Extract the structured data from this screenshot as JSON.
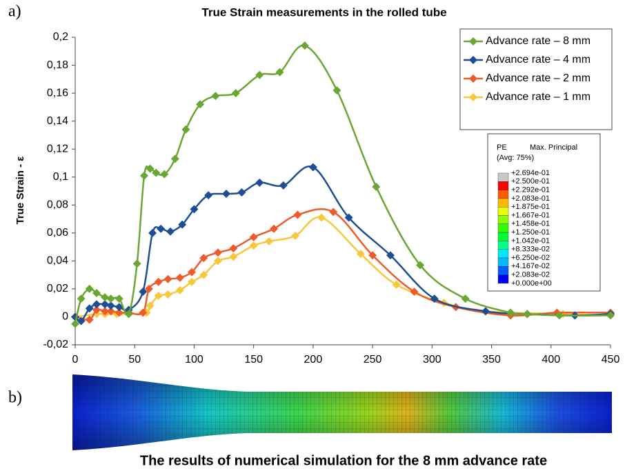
{
  "panel_labels": [
    "a)",
    "b)"
  ],
  "caption": "The results of numerical simulation for the 8 mm advance rate",
  "chart_data": {
    "type": "line",
    "title": "True Strain measurements in the rolled tube",
    "y_label": "True Strain - ε",
    "xlim": [
      0,
      450
    ],
    "xticks": [
      0,
      50,
      100,
      150,
      200,
      250,
      300,
      350,
      400,
      450
    ],
    "ylim": [
      -0.02,
      0.2
    ],
    "yticks": [
      {
        "value": -0.02,
        "label": "-0,02"
      },
      0,
      {
        "value": 0.02,
        "label": "0,02"
      },
      {
        "value": 0.04,
        "label": "0,04"
      },
      {
        "value": 0.06,
        "label": "0,06"
      },
      {
        "value": 0.08,
        "label": "0,08"
      },
      {
        "value": 0.1,
        "label": "0,1"
      },
      {
        "value": 0.12,
        "label": "0,12"
      },
      {
        "value": 0.14,
        "label": "0,14"
      },
      {
        "value": 0.16,
        "label": "0,16"
      },
      {
        "value": 0.18,
        "label": "0,18"
      },
      {
        "value": 0.2,
        "label": "0,2"
      }
    ],
    "grid": false,
    "legend": "upper right",
    "series": [
      {
        "name": "Advance rate – 8 mm",
        "color": "#6aa632",
        "x": [
          0,
          5,
          12,
          18,
          25,
          30,
          37,
          45,
          52,
          58,
          63,
          68,
          75,
          84,
          93,
          105,
          118,
          135,
          155,
          172,
          193,
          220,
          253,
          290,
          328,
          366,
          380,
          407,
          450
        ],
        "values": [
          -0.005,
          0.013,
          0.02,
          0.017,
          0.014,
          0.013,
          0.013,
          0.002,
          0.038,
          0.101,
          0.106,
          0.103,
          0.102,
          0.113,
          0.134,
          0.152,
          0.158,
          0.16,
          0.173,
          0.175,
          0.194,
          0.162,
          0.093,
          0.037,
          0.013,
          0.003,
          0.002,
          0.001,
          0.001
        ]
      },
      {
        "name": "Advance rate – 4 mm",
        "color": "#1d4e94",
        "x": [
          0,
          5,
          12,
          18,
          25,
          30,
          37,
          45,
          57,
          65,
          72,
          80,
          90,
          100,
          112,
          127,
          140,
          155,
          175,
          200,
          230,
          265,
          302,
          345,
          380,
          420,
          450
        ],
        "values": [
          0,
          -0.003,
          0.006,
          0.009,
          0.009,
          0.008,
          0.007,
          0.005,
          0.018,
          0.06,
          0.063,
          0.061,
          0.066,
          0.077,
          0.087,
          0.088,
          0.089,
          0.096,
          0.094,
          0.107,
          0.071,
          0.044,
          0.013,
          0.004,
          0.002,
          0.001,
          0.002
        ]
      },
      {
        "name": "Advance rate – 2 mm",
        "color": "#ee5b2a",
        "x": [
          0,
          12,
          18,
          25,
          30,
          37,
          45,
          57,
          62,
          70,
          78,
          88,
          98,
          108,
          120,
          133,
          150,
          167,
          187,
          217,
          250,
          285,
          320,
          366,
          405,
          450
        ],
        "values": [
          0,
          -0.002,
          0.005,
          0.004,
          0.004,
          0.003,
          0.003,
          0.003,
          0.02,
          0.025,
          0.027,
          0.028,
          0.032,
          0.042,
          0.046,
          0.049,
          0.057,
          0.063,
          0.073,
          0.075,
          0.044,
          0.018,
          0.007,
          0.001,
          0.003,
          0.003
        ]
      },
      {
        "name": "Advance rate – 1 mm",
        "color": "#f7c83a",
        "x": [
          0,
          18,
          25,
          35,
          45,
          60,
          63,
          70,
          78,
          88,
          98,
          108,
          120,
          133,
          150,
          163,
          185,
          207,
          240,
          270,
          310,
          345,
          410,
          450
        ],
        "values": [
          0,
          0.002,
          0.002,
          0.002,
          0.002,
          0.003,
          0.008,
          0.015,
          0.016,
          0.019,
          0.025,
          0.03,
          0.04,
          0.043,
          0.051,
          0.054,
          0.058,
          0.071,
          0.045,
          0.023,
          0.01,
          0.004,
          0.002,
          0.001
        ]
      }
    ]
  },
  "contour_legend": {
    "title": "PE",
    "variable": "Max. Principal",
    "averaging": "(Avg: 75%)",
    "labels": [
      "+2.694e-01",
      "+2.500e-01",
      "+2.292e-01",
      "+2.083e-01",
      "+1.875e-01",
      "+1.667e-01",
      "+1.458e-01",
      "+1.250e-01",
      "+1.042e-01",
      "+8.333e-02",
      "+6.250e-02",
      "+4.167e-02",
      "+2.083e-02",
      "+0.000e+00"
    ],
    "colors": [
      "#c8c8c8",
      "#ff0000",
      "#ff5c00",
      "#ffb900",
      "#e8ff00",
      "#8bff00",
      "#2eff00",
      "#00ff2e",
      "#00ff8b",
      "#00e8ff",
      "#00b9ff",
      "#005cff",
      "#0000ff"
    ]
  }
}
